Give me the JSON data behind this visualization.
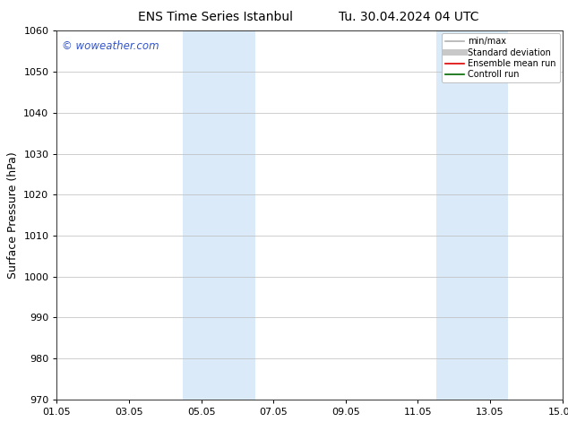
{
  "title": "ENS Time Series Istanbul",
  "title2": "Tu. 30.04.2024 04 UTC",
  "ylabel": "Surface Pressure (hPa)",
  "ylim": [
    970,
    1060
  ],
  "yticks": [
    970,
    980,
    990,
    1000,
    1010,
    1020,
    1030,
    1040,
    1050,
    1060
  ],
  "xlim": [
    0.0,
    14.0
  ],
  "xtick_labels": [
    "01.05",
    "03.05",
    "05.05",
    "07.05",
    "09.05",
    "11.05",
    "13.05",
    "15.05"
  ],
  "xtick_positions": [
    0.0,
    2.0,
    4.0,
    6.0,
    8.0,
    10.0,
    12.0,
    14.0
  ],
  "shaded_regions": [
    {
      "xmin": 3.5,
      "xmax": 5.5,
      "color": "#daeaf8"
    },
    {
      "xmin": 10.5,
      "xmax": 12.5,
      "color": "#daeaf8"
    }
  ],
  "watermark_text": "© woweather.com",
  "watermark_color": "#3355cc",
  "watermark_fontsize": 8.5,
  "legend_entries": [
    {
      "label": "min/max",
      "color": "#b0b0b0",
      "lw": 1.2,
      "linestyle": "-"
    },
    {
      "label": "Standard deviation",
      "color": "#c8c8c8",
      "lw": 5,
      "linestyle": "-"
    },
    {
      "label": "Ensemble mean run",
      "color": "#dd0000",
      "lw": 1.2,
      "linestyle": "-"
    },
    {
      "label": "Controll run",
      "color": "#006600",
      "lw": 1.2,
      "linestyle": "-"
    }
  ],
  "bg_color": "#ffffff",
  "grid_color": "#bbbbbb",
  "title_fontsize": 10,
  "axis_label_fontsize": 9,
  "tick_fontsize": 8,
  "legend_fontsize": 7
}
